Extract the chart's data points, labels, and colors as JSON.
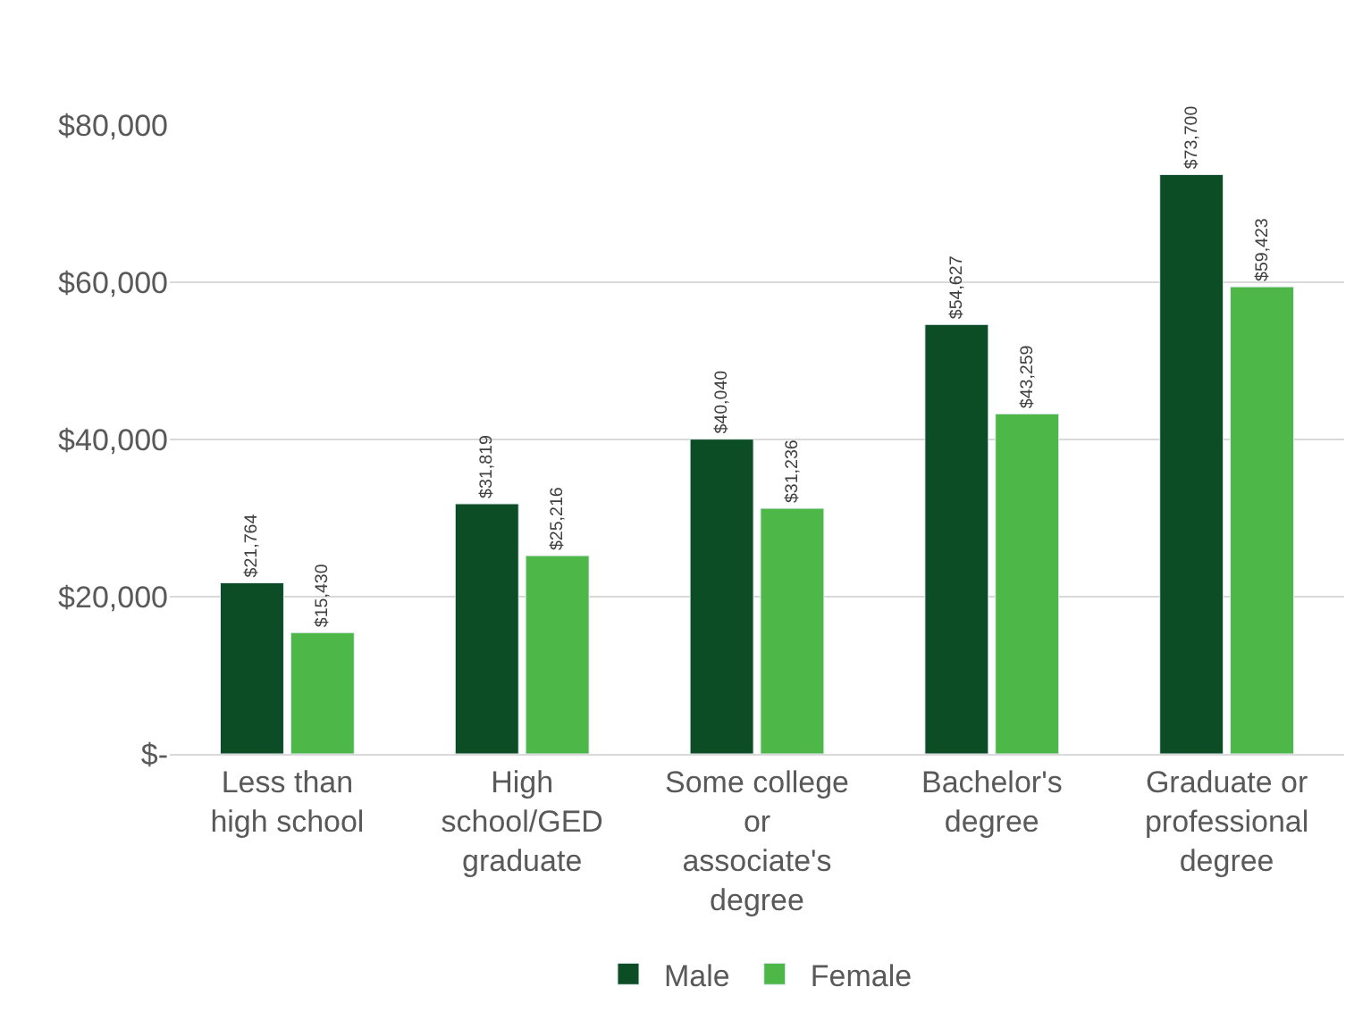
{
  "chart_data": {
    "type": "bar",
    "categories": [
      "Less than high school",
      "High school/GED graduate",
      "Some college or associate's degree",
      "Bachelor's degree",
      "Graduate or professional degree"
    ],
    "series": [
      {
        "name": "Male",
        "color": "#0d4d26",
        "values": [
          21764,
          31819,
          40040,
          54627,
          73700
        ],
        "value_labels": [
          "$21,764",
          "$31,819",
          "$40,040",
          "$54,627",
          "$73,700"
        ]
      },
      {
        "name": "Female",
        "color": "#4db848",
        "values": [
          15430,
          25216,
          31236,
          43259,
          59423
        ],
        "value_labels": [
          "$15,430",
          "$25,216",
          "$31,236",
          "$43,259",
          "$59,423"
        ]
      }
    ],
    "ylim": [
      0,
      80000
    ],
    "yticks": [
      {
        "value": 0,
        "label": "$-"
      },
      {
        "value": 20000,
        "label": "$20,000"
      },
      {
        "value": 40000,
        "label": "$40,000"
      },
      {
        "value": 60000,
        "label": "$60,000"
      },
      {
        "value": 80000,
        "label": "$80,000"
      }
    ],
    "grid": "y",
    "legend": "bottom"
  }
}
